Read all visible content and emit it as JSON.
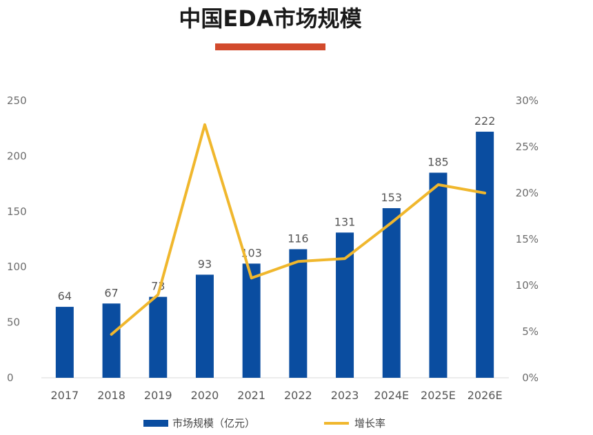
{
  "chart_data": {
    "type": "bar",
    "title": "中国EDA市场规模",
    "accent_color": "#d24a2c",
    "categories": [
      "2017",
      "2018",
      "2019",
      "2020",
      "2021",
      "2022",
      "2023",
      "2024E",
      "2025E",
      "2026E"
    ],
    "series": [
      {
        "name": "市场规模（亿元）",
        "type": "bar",
        "axis": "left",
        "color": "#0a4da0",
        "values": [
          64,
          67,
          73,
          93,
          103,
          116,
          131,
          153,
          185,
          222
        ]
      },
      {
        "name": "增长率",
        "type": "line",
        "axis": "right",
        "color": "#f0b72d",
        "values": [
          null,
          4.7,
          9.0,
          27.4,
          10.8,
          12.6,
          12.9,
          16.8,
          20.9,
          20.0
        ]
      }
    ],
    "y_left": {
      "ylim": [
        0,
        250
      ],
      "ticks": [
        "0",
        "50",
        "100",
        "150",
        "200",
        "250"
      ]
    },
    "y_right": {
      "ylim": [
        0,
        30
      ],
      "ticks": [
        "0%",
        "5%",
        "10%",
        "15%",
        "20%",
        "25%",
        "30%"
      ]
    },
    "grid": false,
    "legend_position": "bottom"
  }
}
